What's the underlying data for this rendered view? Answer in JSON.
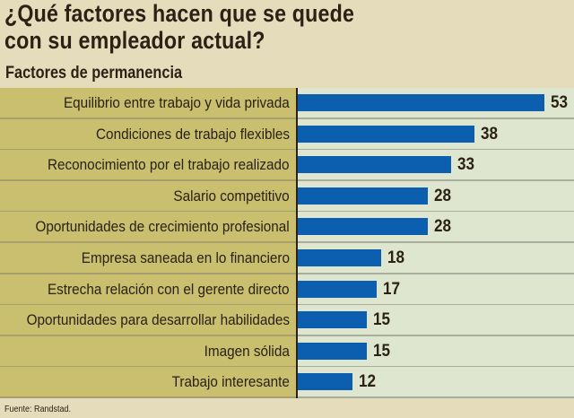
{
  "chart_data": {
    "type": "bar",
    "orientation": "horizontal",
    "title": "¿Qué factores hacen que se quede con su empleador actual?",
    "subtitle": "Factores de permanencia",
    "categories": [
      "Equilibrio entre trabajo y vida privada",
      "Condiciones de trabajo flexibles",
      "Reconocimiento por el trabajo realizado",
      "Salario competitivo",
      "Oportunidades de crecimiento profesional",
      "Empresa saneada en lo financiero",
      "Estrecha relación con el gerente directo",
      "Oportunidades para desarrollar habilidades",
      "Imagen sólida",
      "Trabajo interesante"
    ],
    "values": [
      53,
      38,
      33,
      28,
      28,
      18,
      17,
      15,
      15,
      12
    ],
    "xlim": [
      0,
      58
    ],
    "grid": false,
    "source": "Fuente: Randstad.",
    "colors": {
      "bar": "#0b5fae",
      "label_panel": "#c9bf6f",
      "plot_bg": "#dee6d0",
      "background": "#e5dcbc"
    }
  }
}
